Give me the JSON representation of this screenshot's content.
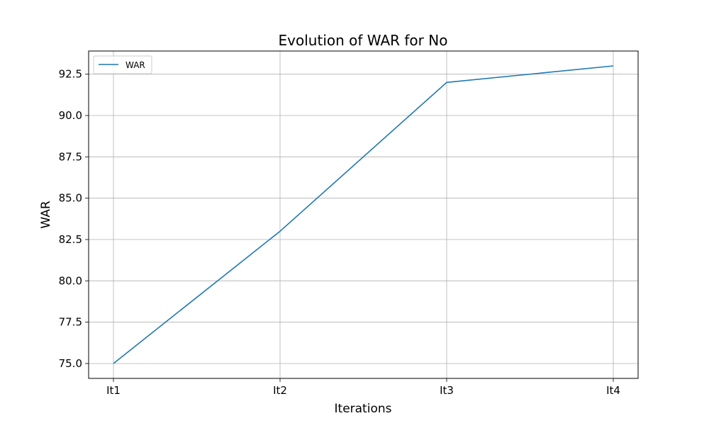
{
  "chart_data": {
    "type": "line",
    "title": "Evolution of WAR for No",
    "xlabel": "Iterations",
    "ylabel": "WAR",
    "categories": [
      "It1",
      "It2",
      "It3",
      "It4"
    ],
    "series": [
      {
        "name": "WAR",
        "values": [
          75.0,
          83.0,
          92.0,
          93.0
        ],
        "color": "#1f77b4"
      }
    ],
    "ylim": [
      74.1,
      93.9
    ],
    "yticks": [
      75.0,
      77.5,
      80.0,
      82.5,
      85.0,
      87.5,
      90.0,
      92.5
    ],
    "ytick_labels": [
      "75.0",
      "77.5",
      "80.0",
      "82.5",
      "85.0",
      "87.5",
      "90.0",
      "92.5"
    ],
    "grid": true,
    "legend_position": "top-left"
  }
}
